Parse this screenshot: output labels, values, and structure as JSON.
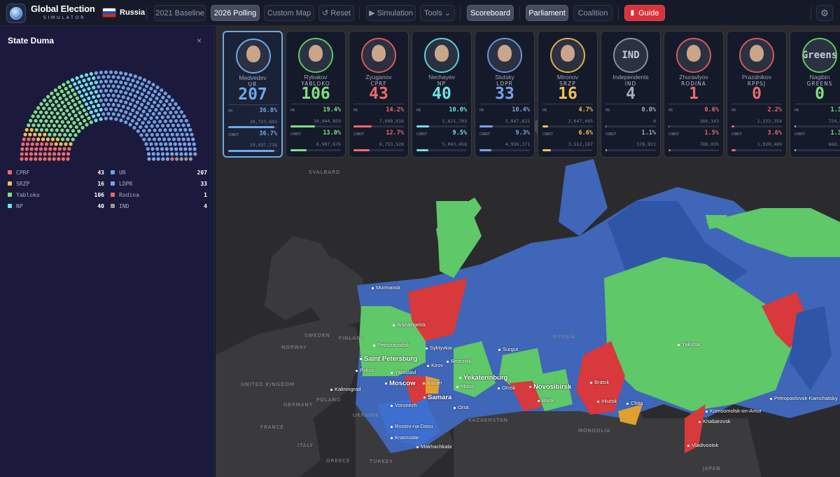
{
  "app": {
    "title_line1": "Global Election",
    "title_line2": "SIMULATOR",
    "country": "Russia"
  },
  "toolbar": {
    "baseline": "2021 Baseline",
    "polling": "2026 Polling",
    "custom_map": "Custom Map",
    "reset": "↺ Reset",
    "simulation": "▶ Simulation",
    "tools": "Tools ⌄",
    "scoreboard": "Scoreboard",
    "parliament": "Parliament",
    "coalition": "Coalition",
    "guide": "Guide"
  },
  "sidebar": {
    "title": "State Duma",
    "close": "×",
    "seats": [
      {
        "party": "CPRF",
        "seats": 43,
        "color": "#f06a6a"
      },
      {
        "party": "SRZP",
        "seats": 16,
        "color": "#f2c14e"
      },
      {
        "party": "Yabloko",
        "seats": 106,
        "color": "#7ee07f"
      },
      {
        "party": "NP",
        "seats": 40,
        "color": "#6fe1e6"
      },
      {
        "party": "UR",
        "seats": 207,
        "color": "#6f9fe0"
      },
      {
        "party": "LDPR",
        "seats": 33,
        "color": "#7aa3e8"
      },
      {
        "party": "Rodina",
        "seats": 1,
        "color": "#e46b6b"
      },
      {
        "party": "IND",
        "seats": 4,
        "color": "#9a9a9a"
      }
    ]
  },
  "cards": [
    {
      "name": "Medvedev",
      "party": "UR",
      "seats": "207",
      "pr_pct": "36.8%",
      "pr_votes": "20,723,693",
      "pr_frac": 0.368,
      "const_pct": "36.7%",
      "const_votes": "19,437,716",
      "const_frac": 0.367,
      "color": "#6fa8e8",
      "ring": "#6fa8e8",
      "avatar": "portrait",
      "selected": true
    },
    {
      "name": "Rybakov",
      "party": "YABLOKO",
      "seats": "106",
      "pr_pct": "19.4%",
      "pr_votes": "10,944,859",
      "pr_frac": 0.194,
      "const_pct": "13.0%",
      "const_votes": "6,907,676",
      "const_frac": 0.13,
      "color": "#7ee07f",
      "ring": "#5ec85f",
      "avatar": "portrait"
    },
    {
      "name": "Zyuganov",
      "party": "CPRF",
      "seats": "43",
      "pr_pct": "14.2%",
      "pr_votes": "7,998,816",
      "pr_frac": 0.142,
      "const_pct": "12.7%",
      "const_votes": "6,753,526",
      "const_frac": 0.127,
      "color": "#f06a6a",
      "ring": "#e05858",
      "avatar": "portrait"
    },
    {
      "name": "Nechayev",
      "party": "NP",
      "seats": "40",
      "pr_pct": "10.0%",
      "pr_votes": "5,621,703",
      "pr_frac": 0.1,
      "const_pct": "9.5%",
      "const_votes": "5,043,458",
      "const_frac": 0.095,
      "color": "#6fe1e6",
      "ring": "#5dd0d6",
      "avatar": "portrait"
    },
    {
      "name": "Slutsky",
      "party": "LDPR",
      "seats": "33",
      "pr_pct": "10.4%",
      "pr_votes": "5,847,822",
      "pr_frac": 0.104,
      "const_pct": "9.3%",
      "const_votes": "4,936,371",
      "const_frac": 0.093,
      "color": "#7aa3e8",
      "ring": "#6a92d6",
      "avatar": "portrait"
    },
    {
      "name": "Mironov",
      "party": "SRZP",
      "seats": "16",
      "pr_pct": "4.7%",
      "pr_votes": "2,647,495",
      "pr_frac": 0.047,
      "const_pct": "6.6%",
      "const_votes": "3,512,187",
      "const_frac": 0.066,
      "color": "#f2c14e",
      "ring": "#e0b040",
      "avatar": "portrait"
    },
    {
      "name": "Independents",
      "party": "IND",
      "seats": "4",
      "pr_pct": "0.0%",
      "pr_votes": "0",
      "pr_frac": 0.0,
      "const_pct": "1.1%",
      "const_votes": "578,921",
      "const_frac": 0.011,
      "color": "#a9adb8",
      "ring": "#8a8e98",
      "avatar": "text",
      "avatar_text": "IND"
    },
    {
      "name": "Zhuravlyov",
      "party": "RODINA",
      "seats": "1",
      "pr_pct": "0.6%",
      "pr_votes": "366,143",
      "pr_frac": 0.006,
      "const_pct": "1.5%",
      "const_votes": "788,035",
      "const_frac": 0.015,
      "color": "#e46b6b",
      "ring": "#d05a5a",
      "avatar": "portrait"
    },
    {
      "name": "Prazdnikov",
      "party": "RPPSJ",
      "seats": "0",
      "pr_pct": "2.2%",
      "pr_votes": "1,222,354",
      "pr_frac": 0.022,
      "const_pct": "3.6%",
      "const_votes": "1,920,489",
      "const_frac": 0.036,
      "color": "#e46b6b",
      "ring": "#d05a5a",
      "avatar": "portrait"
    },
    {
      "name": "Nagibin",
      "party": "GREENS",
      "seats": "0",
      "pr_pct": "1.3%",
      "pr_votes": "754,81",
      "pr_frac": 0.013,
      "const_pct": "1.3%",
      "const_votes": "668,17",
      "const_frac": 0.013,
      "color": "#7ee07f",
      "ring": "#5ec85f",
      "avatar": "text",
      "avatar_text": "Greens"
    }
  ],
  "labels": {
    "pr": "PR",
    "const": "CONST"
  },
  "map": {
    "cities": [
      "Murmansk",
      "Arkhangelsk",
      "Petrozavodsk",
      "Syktyvkar",
      "Saint Petersburg",
      "Pskov",
      "Yaroslavl",
      "Kirov",
      "Bereznikí",
      "Moscow",
      "Kazan",
      "Yekaterinburg",
      "Miass",
      "Omsk",
      "Novosibirsk",
      "Kaliningrad",
      "Samara",
      "Voronezh",
      "Orsk",
      "Biysk",
      "Rostov-na-Donu",
      "Krasnodar",
      "Makhachkala",
      "Surgut",
      "Bratsk",
      "Irkutsk",
      "Chita",
      "Yakutsk",
      "Komsomolsk-on-Amur",
      "Khabarovsk",
      "Vladivostok",
      "Petropavlovsk-Kamchatsky"
    ],
    "countries": [
      "SVALBARD",
      "SWEDEN",
      "FINLAND",
      "NORWAY",
      "UNITED KINGDOM",
      "GERMANY",
      "POLAND",
      "FRANCE",
      "UKRAINE",
      "ITALY",
      "GREECE",
      "TURKEY",
      "KAZAKHSTAN",
      "MONGOLIA",
      "RUSSIA",
      "JAPAN"
    ]
  }
}
